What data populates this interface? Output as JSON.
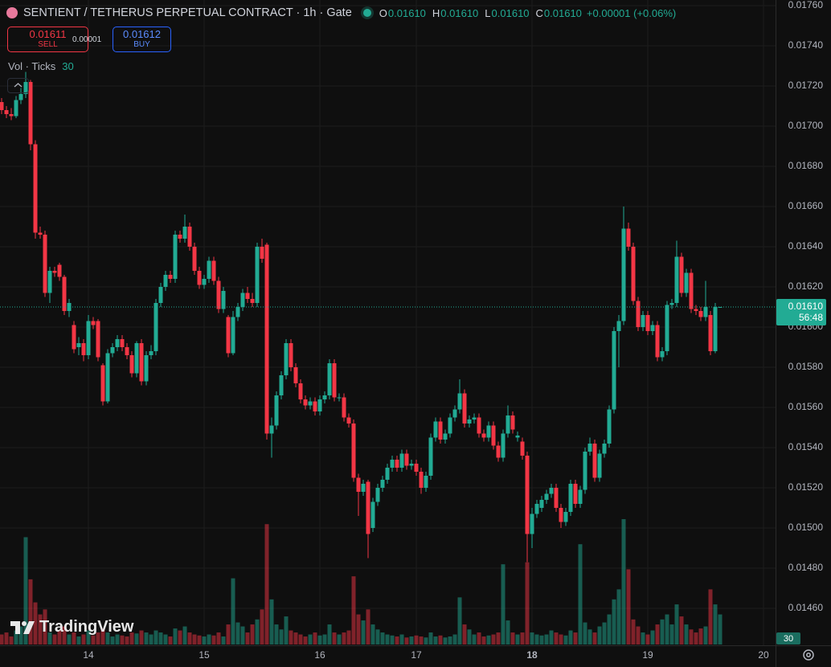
{
  "chart_data": {
    "type": "candlestick",
    "title": "SENTIENT / TETHERUS PERPETUAL CONTRACT · 1h · Gate",
    "ohlc_legend": [
      {
        "label": "O",
        "value": "0.01610"
      },
      {
        "label": "H",
        "value": "0.01610"
      },
      {
        "label": "L",
        "value": "0.01610"
      },
      {
        "label": "C",
        "value": "0.01610"
      }
    ],
    "change": "+0.00001 (+0.06%)",
    "trade": {
      "sell_price": "0.01611",
      "sell_label": "SELL",
      "spread": "0.00001",
      "buy_price": "0.01612",
      "buy_label": "BUY"
    },
    "watermark": "TradingView",
    "up_color": "#22ab94",
    "down_color": "#f23645",
    "grid": true,
    "categories": [
      null,
      null,
      null,
      null,
      null,
      null,
      null,
      null,
      null,
      null,
      null,
      null,
      null,
      null,
      null,
      null,
      null,
      null,
      "14",
      null,
      null,
      null,
      null,
      null,
      null,
      null,
      null,
      null,
      null,
      null,
      null,
      null,
      null,
      null,
      null,
      null,
      null,
      null,
      null,
      null,
      null,
      null,
      "15",
      null,
      null,
      null,
      null,
      null,
      null,
      null,
      null,
      null,
      null,
      null,
      null,
      null,
      null,
      null,
      null,
      null,
      null,
      null,
      null,
      null,
      null,
      null,
      "16",
      null,
      null,
      null,
      null,
      null,
      null,
      null,
      null,
      null,
      null,
      null,
      null,
      null,
      null,
      null,
      null,
      null,
      null,
      null,
      "17",
      null,
      null,
      null,
      null,
      null,
      null,
      null,
      null,
      null,
      null,
      null,
      null,
      null,
      null,
      null,
      null,
      null,
      null,
      null,
      null,
      null,
      null,
      null,
      "18",
      null,
      null,
      null,
      null,
      null,
      null,
      null,
      null,
      null,
      null,
      null,
      null,
      null,
      null,
      null,
      null,
      null,
      null,
      null,
      null,
      null,
      null,
      null,
      "19",
      null,
      null,
      null,
      null,
      null,
      null,
      null,
      null,
      null,
      null,
      null,
      null,
      null,
      null,
      null,
      null,
      null,
      null,
      null,
      null,
      null,
      null,
      null,
      "20",
      null,
      null
    ],
    "open": [
      0.01712,
      0.01708,
      0.01706,
      0.01705,
      0.01713,
      0.01716,
      0.01722,
      0.01691,
      0.01647,
      0.01646,
      0.01617,
      0.01628,
      0.01631,
      0.01625,
      0.01608,
      0.01601,
      0.0159,
      0.01592,
      0.01586,
      0.01603,
      0.01603,
      0.01581,
      0.01563,
      0.01587,
      0.0159,
      0.01594,
      0.0159,
      0.01586,
      0.01577,
      0.01592,
      0.01573,
      0.01586,
      0.01588,
      0.01612,
      0.0162,
      0.01626,
      0.01624,
      0.01646,
      0.01644,
      0.0165,
      0.0164,
      0.01628,
      0.01621,
      0.01624,
      0.01633,
      0.01623,
      0.01609,
      0.01605,
      0.01587,
      0.01605,
      0.0161,
      0.01617,
      0.01614,
      0.01612,
      0.0164,
      0.01641,
      0.01547,
      0.01551,
      0.01566,
      0.01576,
      0.01592,
      0.0158,
      0.01572,
      0.01564,
      0.01561,
      0.01563,
      0.01558,
      0.01564,
      0.01566,
      0.01582,
      0.01565,
      0.01565,
      0.01555,
      0.01552,
      0.01525,
      0.01518,
      0.01523,
      0.015,
      0.01513,
      0.0152,
      0.01524,
      0.0153,
      0.01534,
      0.0153,
      0.01537,
      0.01531,
      0.01532,
      0.01528,
      0.0152,
      0.01526,
      0.01545,
      0.01553,
      0.01544,
      0.01547,
      0.01555,
      0.01559,
      0.01567,
      0.01552,
      0.01554,
      0.01555,
      0.01547,
      0.01545,
      0.01551,
      0.01541,
      0.01535,
      0.01547,
      0.01556,
      0.01545,
      0.01543,
      0.01536,
      0.01497,
      0.01507,
      0.0151,
      0.01514,
      0.01517,
      0.0152,
      0.0151,
      0.01503,
      0.01508,
      0.01522,
      0.01512,
      0.01519,
      0.01538,
      0.01542,
      0.01525,
      0.01537,
      0.01542,
      0.01559,
      0.01598,
      0.01603,
      0.01649,
      0.0164,
      0.01613,
      0.016,
      0.01606,
      0.01598,
      0.01601,
      0.01585,
      0.01588,
      0.01611,
      0.01612,
      0.01635,
      0.01617,
      0.01627,
      0.01609,
      0.01608,
      0.01605,
      0.01606,
      0.01588,
      0.0161,
      null,
      null,
      null,
      null,
      null,
      null,
      null,
      null,
      null,
      null,
      null
    ],
    "high": [
      0.01714,
      0.0171,
      0.01709,
      0.01715,
      0.01719,
      0.01727,
      0.01723,
      0.01693,
      0.0165,
      0.01648,
      0.0163,
      0.0163,
      0.01632,
      0.01626,
      0.01614,
      0.01603,
      0.01595,
      0.01594,
      0.01606,
      0.01605,
      0.01604,
      0.01582,
      0.01589,
      0.01592,
      0.01596,
      0.01596,
      0.01592,
      0.01588,
      0.01593,
      0.01594,
      0.01588,
      0.01591,
      0.01614,
      0.01622,
      0.01628,
      0.01628,
      0.01648,
      0.01648,
      0.01656,
      0.01652,
      0.01642,
      0.0163,
      0.01626,
      0.01635,
      0.01635,
      0.01625,
      0.0162,
      0.01606,
      0.01608,
      0.01612,
      0.01619,
      0.0162,
      0.01617,
      0.01642,
      0.01644,
      0.01642,
      0.01555,
      0.01568,
      0.01578,
      0.01594,
      0.01594,
      0.01582,
      0.01574,
      0.01566,
      0.01565,
      0.01565,
      0.01566,
      0.01568,
      0.01584,
      0.01584,
      0.01567,
      0.01567,
      0.01557,
      0.01554,
      0.01527,
      0.01524,
      0.01524,
      0.01515,
      0.01522,
      0.01526,
      0.01532,
      0.01536,
      0.01536,
      0.01539,
      0.01539,
      0.01534,
      0.01534,
      0.0153,
      0.01528,
      0.01547,
      0.01555,
      0.01555,
      0.01549,
      0.01557,
      0.01561,
      0.01574,
      0.01569,
      0.01556,
      0.01557,
      0.01557,
      0.01549,
      0.01553,
      0.01553,
      0.01543,
      0.01549,
      0.01561,
      0.01558,
      0.01548,
      0.01545,
      0.01538,
      0.0151,
      0.01514,
      0.01516,
      0.01519,
      0.01522,
      0.01522,
      0.01512,
      0.0151,
      0.01524,
      0.01524,
      0.01521,
      0.0154,
      0.01545,
      0.01544,
      0.01539,
      0.01544,
      0.01561,
      0.016,
      0.01606,
      0.0166,
      0.01652,
      0.01642,
      0.01615,
      0.01608,
      0.01608,
      0.01603,
      0.01603,
      0.0159,
      0.01613,
      0.01614,
      0.01643,
      0.01637,
      0.01629,
      0.01629,
      0.01611,
      0.0161,
      0.01623,
      0.01608,
      0.01612,
      0.0161,
      null,
      null,
      null,
      null,
      null,
      null,
      null,
      null,
      null,
      null,
      null
    ],
    "low": [
      0.01706,
      0.01704,
      0.01703,
      0.01704,
      0.01711,
      0.01714,
      0.01688,
      0.01644,
      0.01644,
      0.01615,
      0.01612,
      0.01625,
      0.01623,
      0.01606,
      0.01605,
      0.01587,
      0.01586,
      0.01583,
      0.01584,
      0.01599,
      0.01583,
      0.01561,
      0.01562,
      0.01585,
      0.01588,
      0.01588,
      0.01584,
      0.01575,
      0.01575,
      0.01571,
      0.01571,
      0.01584,
      0.01586,
      0.0161,
      0.01618,
      0.01622,
      0.01622,
      0.01642,
      0.01642,
      0.01638,
      0.01626,
      0.01619,
      0.01619,
      0.01622,
      0.01621,
      0.01607,
      0.01607,
      0.01585,
      0.01586,
      0.01603,
      0.01608,
      0.01612,
      0.0161,
      0.0161,
      0.01632,
      0.01544,
      0.01535,
      0.01549,
      0.01564,
      0.01574,
      0.01578,
      0.0157,
      0.01562,
      0.01559,
      0.01559,
      0.01556,
      0.01556,
      0.01562,
      0.01564,
      0.01563,
      0.01563,
      0.01553,
      0.0155,
      0.01523,
      0.01506,
      0.01516,
      0.01485,
      0.01498,
      0.01511,
      0.01518,
      0.01522,
      0.01528,
      0.01528,
      0.01528,
      0.01529,
      0.01529,
      0.01526,
      0.01517,
      0.01518,
      0.01524,
      0.01543,
      0.01542,
      0.01542,
      0.01545,
      0.01553,
      0.01557,
      0.0155,
      0.0155,
      0.01552,
      0.01545,
      0.01543,
      0.01543,
      0.01539,
      0.01533,
      0.01533,
      0.01545,
      0.01547,
      0.01543,
      0.01534,
      0.01483,
      0.0149,
      0.01505,
      0.01508,
      0.01512,
      0.01515,
      0.01508,
      0.015,
      0.01501,
      0.01506,
      0.0151,
      0.0151,
      0.01517,
      0.01536,
      0.01523,
      0.01523,
      0.01535,
      0.0154,
      0.01557,
      0.0158,
      0.01601,
      0.01638,
      0.01611,
      0.01598,
      0.01598,
      0.01596,
      0.01596,
      0.01583,
      0.01583,
      0.01586,
      0.01609,
      0.0161,
      0.01615,
      0.01615,
      0.01607,
      0.01606,
      0.01603,
      0.01603,
      0.01586,
      0.01587,
      0.0161,
      null,
      null,
      null,
      null,
      null,
      null,
      null,
      null,
      null,
      null,
      null
    ],
    "close": [
      0.01708,
      0.01706,
      0.01705,
      0.01713,
      0.01716,
      0.01722,
      0.01691,
      0.01647,
      0.01646,
      0.01617,
      0.01628,
      0.01627,
      0.01625,
      0.01608,
      0.01612,
      0.01589,
      0.01592,
      0.01586,
      0.01603,
      0.01601,
      0.01585,
      0.01563,
      0.01587,
      0.0159,
      0.01594,
      0.0159,
      0.01586,
      0.01577,
      0.01592,
      0.01573,
      0.01586,
      0.01588,
      0.01612,
      0.0162,
      0.01626,
      0.01624,
      0.01646,
      0.01644,
      0.0165,
      0.0164,
      0.01628,
      0.01621,
      0.01624,
      0.01633,
      0.01623,
      0.01609,
      0.01618,
      0.01587,
      0.01605,
      0.0161,
      0.01617,
      0.01614,
      0.01612,
      0.0164,
      0.01634,
      0.01547,
      0.01551,
      0.01566,
      0.01576,
      0.01592,
      0.0158,
      0.01572,
      0.01564,
      0.01561,
      0.01563,
      0.01558,
      0.01564,
      0.01566,
      0.01582,
      0.01565,
      0.01565,
      0.01555,
      0.01552,
      0.01525,
      0.01518,
      0.01522,
      0.01497,
      0.01513,
      0.0152,
      0.01524,
      0.0153,
      0.01534,
      0.0153,
      0.01537,
      0.01531,
      0.01532,
      0.01528,
      0.0152,
      0.01526,
      0.01545,
      0.01553,
      0.01544,
      0.01547,
      0.01555,
      0.01559,
      0.01567,
      0.01552,
      0.01554,
      0.01555,
      0.01547,
      0.01545,
      0.01551,
      0.01541,
      0.01535,
      0.01547,
      0.01556,
      0.01549,
      0.01546,
      0.01536,
      0.01497,
      0.01507,
      0.01512,
      0.01514,
      0.01517,
      0.0152,
      0.0151,
      0.01503,
      0.01508,
      0.01522,
      0.01512,
      0.01519,
      0.01538,
      0.01542,
      0.01525,
      0.01537,
      0.01542,
      0.01559,
      0.01598,
      0.01603,
      0.01649,
      0.0164,
      0.01613,
      0.016,
      0.01606,
      0.01598,
      0.01601,
      0.01585,
      0.01588,
      0.01611,
      0.01612,
      0.01635,
      0.01617,
      0.01627,
      0.01609,
      0.01608,
      0.01605,
      0.0161,
      0.01588,
      0.0161,
      0.0161,
      null,
      null,
      null,
      null,
      null,
      null,
      null,
      null,
      null,
      null,
      null
    ],
    "volume": {
      "name": "Vol · Ticks",
      "values": [
        10,
        12,
        8,
        14,
        18,
        107,
        65,
        42,
        30,
        35,
        12,
        10,
        14,
        18,
        10,
        12,
        8,
        10,
        14,
        9,
        12,
        16,
        12,
        8,
        10,
        9,
        8,
        12,
        11,
        14,
        12,
        10,
        14,
        12,
        10,
        8,
        16,
        14,
        18,
        12,
        10,
        9,
        8,
        10,
        9,
        12,
        8,
        20,
        66,
        22,
        18,
        12,
        20,
        25,
        35,
        120,
        45,
        20,
        15,
        28,
        14,
        12,
        10,
        8,
        10,
        12,
        9,
        10,
        20,
        12,
        10,
        12,
        14,
        68,
        30,
        24,
        35,
        20,
        15,
        12,
        10,
        9,
        8,
        10,
        7,
        8,
        9,
        8,
        7,
        12,
        8,
        9,
        7,
        8,
        10,
        47,
        20,
        15,
        10,
        12,
        8,
        9,
        10,
        12,
        80,
        24,
        12,
        10,
        12,
        82,
        12,
        10,
        9,
        10,
        14,
        12,
        10,
        9,
        14,
        12,
        100,
        22,
        15,
        12,
        18,
        22,
        30,
        45,
        55,
        125,
        75,
        25,
        18,
        12,
        10,
        14,
        20,
        25,
        30,
        20,
        40,
        28,
        20,
        15,
        12,
        16,
        18,
        55,
        40,
        30,
        null,
        null,
        null,
        null,
        null,
        null,
        null,
        null,
        null,
        null,
        null
      ]
    },
    "last_price": {
      "value": 0.0161,
      "label": "0.01610",
      "countdown": "56:48"
    },
    "ylim": [
      0.014416,
      0.017628
    ],
    "yticks": [
      {
        "value": 0.0146,
        "label": "0.01460"
      },
      {
        "value": 0.0148,
        "label": "0.01480"
      },
      {
        "value": 0.015,
        "label": "0.01500"
      },
      {
        "value": 0.0152,
        "label": "0.01520"
      },
      {
        "value": 0.0154,
        "label": "0.01540"
      },
      {
        "value": 0.0156,
        "label": "0.01560"
      },
      {
        "value": 0.0158,
        "label": "0.01580"
      },
      {
        "value": 0.016,
        "label": "0.01600"
      },
      {
        "value": 0.0162,
        "label": "0.01620"
      },
      {
        "value": 0.0164,
        "label": "0.01640"
      },
      {
        "value": 0.0166,
        "label": "0.01660"
      },
      {
        "value": 0.0168,
        "label": "0.01680"
      },
      {
        "value": 0.017,
        "label": "0.01700"
      },
      {
        "value": 0.0172,
        "label": "0.01720"
      },
      {
        "value": 0.0174,
        "label": "0.01740"
      },
      {
        "value": 0.0176,
        "label": "0.01760"
      }
    ]
  }
}
